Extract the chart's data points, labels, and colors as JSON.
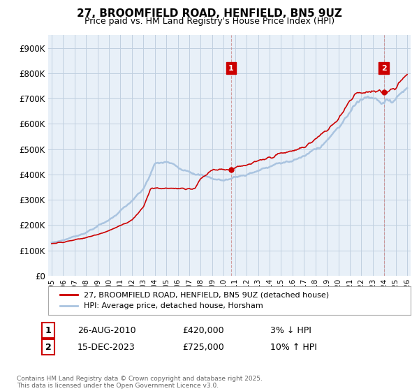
{
  "title": "27, BROOMFIELD ROAD, HENFIELD, BN5 9UZ",
  "subtitle": "Price paid vs. HM Land Registry's House Price Index (HPI)",
  "legend_line1": "27, BROOMFIELD ROAD, HENFIELD, BN5 9UZ (detached house)",
  "legend_line2": "HPI: Average price, detached house, Horsham",
  "annotation1_label": "1",
  "annotation1_date": "26-AUG-2010",
  "annotation1_price": "£420,000",
  "annotation1_hpi": "3% ↓ HPI",
  "annotation1_year": 2010.65,
  "annotation1_value": 420000,
  "annotation2_label": "2",
  "annotation2_date": "15-DEC-2023",
  "annotation2_price": "£725,000",
  "annotation2_hpi": "10% ↑ HPI",
  "annotation2_year": 2023.96,
  "annotation2_value": 725000,
  "footer": "Contains HM Land Registry data © Crown copyright and database right 2025.\nThis data is licensed under the Open Government Licence v3.0.",
  "hpi_color": "#aac4e0",
  "price_color": "#cc0000",
  "annotation_box_color": "#cc0000",
  "background_color": "#ffffff",
  "chart_bg_color": "#e8f0f8",
  "grid_color": "#c0d0e0",
  "dashed_line_color": "#cc8888",
  "ylim": [
    0,
    950000
  ],
  "yticks": [
    0,
    100000,
    200000,
    300000,
    400000,
    500000,
    600000,
    700000,
    800000,
    900000
  ],
  "xlim_start": 1994.7,
  "xlim_end": 2026.3,
  "key_years": [
    0,
    1,
    2,
    3,
    4,
    5,
    6,
    7,
    8,
    9,
    10,
    11,
    12,
    13,
    14,
    15,
    16,
    17,
    18,
    19,
    20,
    21,
    22,
    23,
    24,
    25,
    26,
    27,
    28,
    29,
    30,
    31
  ],
  "key_hpi": [
    130000,
    140000,
    155000,
    170000,
    195000,
    220000,
    255000,
    295000,
    340000,
    440000,
    450000,
    430000,
    415000,
    395000,
    385000,
    375000,
    390000,
    400000,
    415000,
    430000,
    445000,
    455000,
    470000,
    500000,
    535000,
    580000,
    650000,
    700000,
    710000,
    680000,
    700000,
    750000
  ],
  "sale_years": [
    1995.5,
    2002.0,
    2007.5,
    2010.65,
    2023.96
  ],
  "sale_prices": [
    130000,
    220000,
    345000,
    420000,
    725000
  ]
}
